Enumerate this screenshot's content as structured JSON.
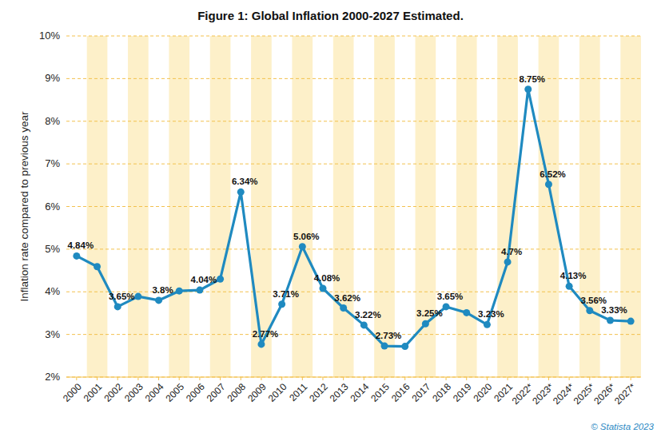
{
  "chart_data": {
    "type": "line",
    "title": "Figure 1: Global Inflation 2000-2027 Estimated.",
    "y_label": "Inflation rate compared to previous year",
    "source": "© Statista 2023",
    "categories": [
      "2000",
      "2001",
      "2002",
      "2003",
      "2004",
      "2005",
      "2006",
      "2007",
      "2008",
      "2009",
      "2010",
      "2011",
      "2012",
      "2013",
      "2014",
      "2015",
      "2016",
      "2017",
      "2018",
      "2019",
      "2020",
      "2021",
      "2022*",
      "2023*",
      "2024*",
      "2025*",
      "2026*",
      "2027*"
    ],
    "values": [
      4.84,
      4.59,
      3.65,
      3.89,
      3.8,
      4.02,
      4.04,
      4.3,
      6.34,
      2.77,
      3.71,
      5.06,
      4.08,
      3.62,
      3.22,
      2.73,
      2.72,
      3.25,
      3.65,
      3.51,
      3.23,
      4.7,
      8.75,
      6.52,
      4.13,
      3.56,
      3.33,
      3.31
    ],
    "value_labels": [
      "4.84%",
      null,
      "3.65%",
      null,
      "3.8%",
      null,
      "4.04%",
      null,
      "6.34%",
      "2.77%",
      "3.71%",
      "5.06%",
      "4.08%",
      "3.62%",
      "3.22%",
      "2.73%",
      null,
      "3.25%",
      "3.65%",
      null,
      "3.23%",
      "4.7%",
      "8.75%",
      "6.52%",
      "4.13%",
      "3.56%",
      "3.33%",
      null
    ],
    "color": "#1f8ac0",
    "marker": "circle",
    "ylim": [
      2,
      10
    ],
    "yticks": [
      {
        "value": 2,
        "label": "2%"
      },
      {
        "value": 3,
        "label": "3%"
      },
      {
        "value": 4,
        "label": "4%"
      },
      {
        "value": 5,
        "label": "5%"
      },
      {
        "value": 6,
        "label": "6%"
      },
      {
        "value": 7,
        "label": "7%"
      },
      {
        "value": 8,
        "label": "8%"
      },
      {
        "value": 9,
        "label": "9%"
      },
      {
        "value": 10,
        "label": "10%"
      }
    ],
    "grid": true,
    "data_labels": true
  }
}
